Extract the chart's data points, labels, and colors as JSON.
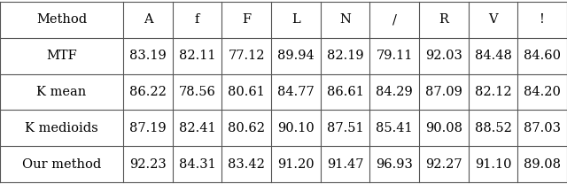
{
  "columns": [
    "Method",
    "A",
    "f",
    "F",
    "L",
    "N",
    "/",
    "R",
    "V",
    "!"
  ],
  "rows": [
    [
      "MTF",
      "83.19",
      "82.11",
      "77.12",
      "89.94",
      "82.19",
      "79.11",
      "92.03",
      "84.48",
      "84.60"
    ],
    [
      "K mean",
      "86.22",
      "78.56",
      "80.61",
      "84.77",
      "86.61",
      "84.29",
      "87.09",
      "82.12",
      "84.20"
    ],
    [
      "K medioids",
      "87.19",
      "82.41",
      "80.62",
      "90.10",
      "87.51",
      "85.41",
      "90.08",
      "88.52",
      "87.03"
    ],
    [
      "Our method",
      "92.23",
      "84.31",
      "83.42",
      "91.20",
      "91.47",
      "96.93",
      "92.27",
      "91.10",
      "89.08"
    ]
  ],
  "background_color": "#ffffff",
  "fontsize": 10.5,
  "line_color": "#555555",
  "text_color": "#000000",
  "line_width": 0.8,
  "fig_width": 6.4,
  "fig_height": 2.08,
  "dpi": 100
}
